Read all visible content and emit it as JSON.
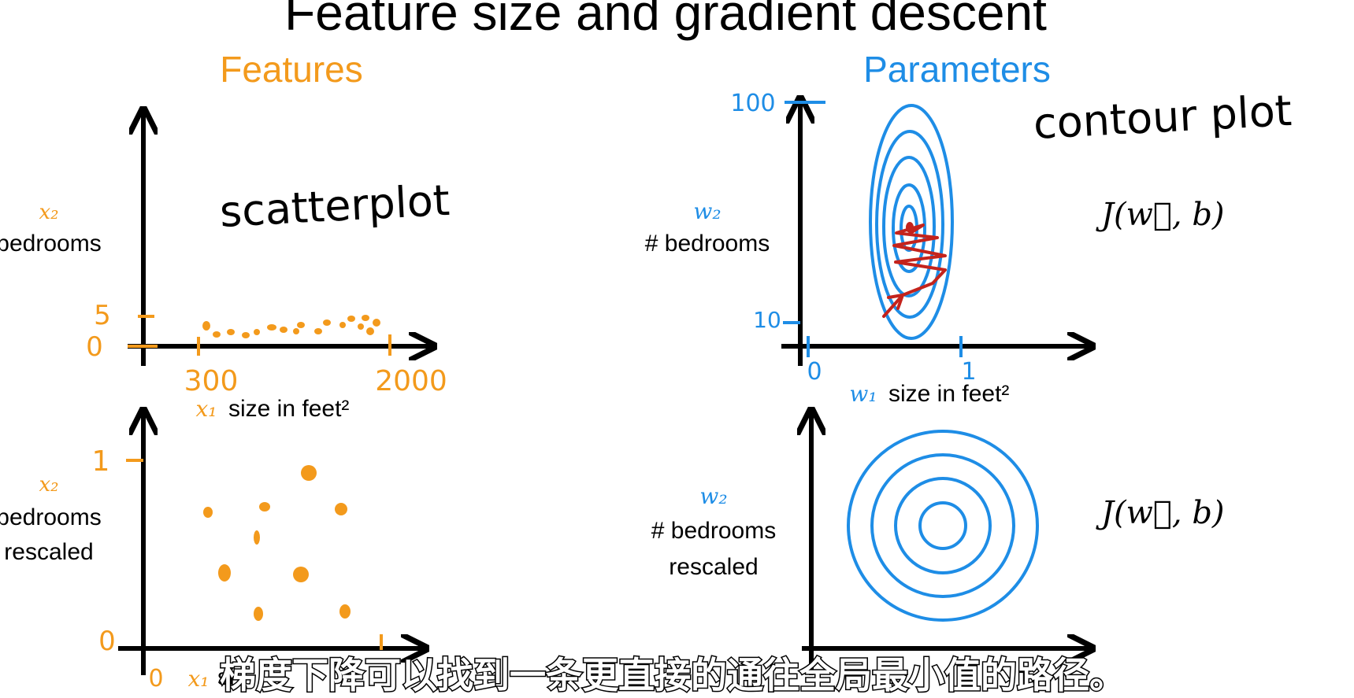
{
  "title": "Feature size and gradient descent",
  "colors": {
    "orange": "#f39a1c",
    "blue": "#1e8de6",
    "red": "#c4231c",
    "black": "#000000"
  },
  "features": {
    "heading": "Features",
    "scatter_note": "scatterplot",
    "top": {
      "y_label_var": "x₂",
      "y_label_text": "bedrooms",
      "y_ticks": [
        "5",
        "0"
      ],
      "x_ticks": [
        "300",
        "2000"
      ],
      "x_label_var": "x₁",
      "x_label_text": "size in feet²"
    },
    "bottom": {
      "y_label_var": "x₂",
      "y_label_line1": "bedrooms",
      "y_label_line2": "rescaled",
      "y_ticks": [
        "1",
        "0"
      ],
      "x_origin": "0",
      "x_label_var": "x₁",
      "x_label_text": "si"
    }
  },
  "parameters": {
    "heading": "Parameters",
    "contour_note": "contour plot",
    "top": {
      "y_label_var": "w₂",
      "y_label_text": "# bedrooms",
      "y_ticks": [
        "100",
        "10"
      ],
      "x_ticks": [
        "0",
        "1"
      ],
      "x_label_var": "w₁",
      "x_label_text": "size in feet²",
      "cost_label": "J(w⃗, b)"
    },
    "bottom": {
      "y_label_var": "w₂",
      "y_label_line1": "# bedrooms",
      "y_label_line2": "rescaled",
      "cost_label": "J(w⃗, b)"
    }
  },
  "subtitle": "梯度下降可以找到一条更直接的通往全局最小值的路径。"
}
